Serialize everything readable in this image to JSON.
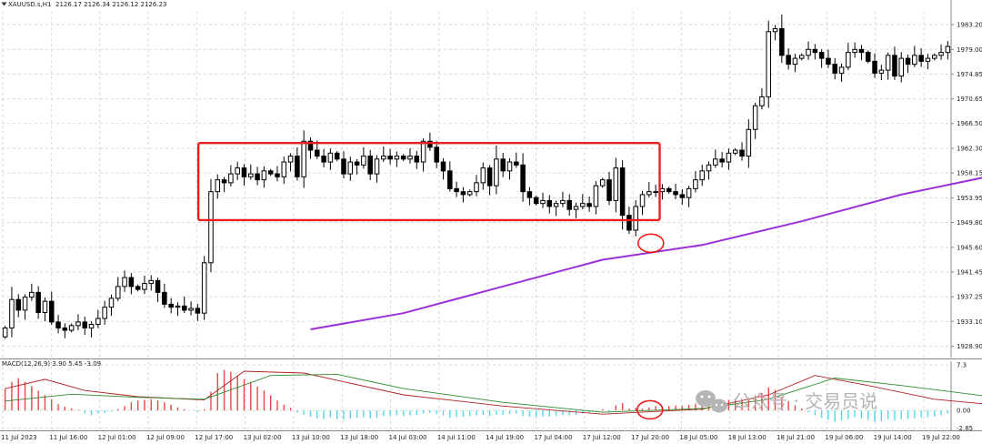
{
  "header": {
    "symbol_label": "XAUUSD.s,H1",
    "ohlc_label": "2126.17 2126.34 2126.12 2126.23",
    "macd_label": "MACD(12,26,9) 3.90 5.45 -3.09",
    "dropdown_icon": "triangle-down-icon"
  },
  "watermark": {
    "icon": "wechat-icon",
    "text": "公众号 · 交易员说"
  },
  "colors": {
    "background": "#ffffff",
    "grid": "#d9d9d9",
    "candle": "#000000",
    "ma": "#9b30d9",
    "highlight": "#ee1c1c",
    "macd_pos": "#ee4444",
    "macd_neg": "#55d6e6",
    "macd_fast": "#b22222",
    "macd_slow": "#2e8b2e"
  },
  "chart_data": [
    {
      "type": "candlestick",
      "title": "XAUUSD.s,H1",
      "y_axis_ticks": [
        "1983.20",
        "1979.00",
        "1974.85",
        "1970.65",
        "1966.50",
        "1962.30",
        "1958.15",
        "1953.95",
        "1949.80",
        "1945.60",
        "1941.45",
        "1937.25",
        "1933.10",
        "1928.90"
      ],
      "x_axis_ticks": [
        "11 Jul 2023",
        "11 Jul 16:00",
        "12 Jul 01:00",
        "12 Jul 09:00",
        "12 Jul 17:00",
        "13 Jul 02:00",
        "13 Jul 10:00",
        "13 Jul 18:00",
        "14 Jul 03:00",
        "14 Jul 11:00",
        "14 Jul 19:00",
        "17 Jul 04:00",
        "17 Jul 12:00",
        "17 Jul 20:00",
        "18 Jul 05:00",
        "18 Jul 13:00",
        "18 Jul 21:00",
        "19 Jul 06:00",
        "19 Jul 14:00",
        "19 Jul 22:00"
      ],
      "ylim": [
        1927.0,
        1985.5
      ],
      "grid": true,
      "closes": [
        1932.0,
        1936.8,
        1935.0,
        1937.2,
        1938.0,
        1934.6,
        1936.5,
        1933.0,
        1932.0,
        1931.6,
        1932.4,
        1933.0,
        1932.0,
        1932.6,
        1933.6,
        1935.5,
        1937.0,
        1939.0,
        1940.5,
        1939.0,
        1938.5,
        1939.5,
        1940.0,
        1938.0,
        1936.0,
        1935.5,
        1935.7,
        1935.0,
        1935.3,
        1934.5,
        1943.0,
        1955.0,
        1957.0,
        1956.5,
        1958.0,
        1959.0,
        1957.5,
        1958.0,
        1957.0,
        1958.5,
        1958.0,
        1957.5,
        1960.0,
        1961.0,
        1957.5,
        1963.5,
        1962.0,
        1961.0,
        1960.0,
        1961.5,
        1960.5,
        1958.0,
        1960.0,
        1959.5,
        1961.0,
        1958.0,
        1960.5,
        1961.0,
        1960.5,
        1961.0,
        1960.5,
        1961.0,
        1960.0,
        1963.5,
        1962.5,
        1960.0,
        1958.5,
        1955.5,
        1955.0,
        1954.5,
        1955.0,
        1956.5,
        1959.0,
        1956.0,
        1960.5,
        1958.5,
        1960.0,
        1959.5,
        1955.0,
        1954.0,
        1953.0,
        1953.5,
        1952.5,
        1953.0,
        1953.5,
        1952.0,
        1952.5,
        1953.0,
        1952.5,
        1956.0,
        1957.0,
        1953.5,
        1959.0,
        1951.0,
        1948.5,
        1952.5,
        1954.5,
        1955.0,
        1955.0,
        1955.5,
        1955.0,
        1954.5,
        1954.0,
        1955.5,
        1957.0,
        1958.5,
        1959.5,
        1960.5,
        1960.0,
        1961.5,
        1962.0,
        1961.0,
        1965.5,
        1969.5,
        1971.0,
        1982.0,
        1982.5,
        1978.0,
        1976.5,
        1977.5,
        1978.0,
        1979.0,
        1978.5,
        1977.5,
        1976.5,
        1975.0,
        1976.0,
        1978.5,
        1979.0,
        1978.5,
        1977.0,
        1975.0,
        1975.5,
        1978.0,
        1974.5,
        1977.5,
        1976.5,
        1978.0,
        1977.0,
        1977.5,
        1978.0,
        1978.5,
        1979.5
      ],
      "ma_line": [
        [
          0,
          1920.0
        ],
        [
          45,
          1931.5
        ],
        [
          60,
          1934.5
        ],
        [
          75,
          1939.0
        ],
        [
          90,
          1943.5
        ],
        [
          105,
          1946.0
        ],
        [
          120,
          1950.0
        ],
        [
          135,
          1954.5
        ],
        [
          150,
          1958.0
        ],
        [
          165,
          1961.0
        ],
        [
          175,
          1962.0
        ],
        [
          185,
          1963.0
        ]
      ],
      "ma_window": [
        46,
        185
      ],
      "highlight_range": {
        "y_top": 1963.2,
        "y_bottom": 1950.2
      },
      "highlight_circle": {
        "price": 1946.3
      }
    },
    {
      "type": "bar",
      "title": "MACD(12,26,9) 3.90 5.45 -3.09",
      "y_axis_ticks": [
        "7.3",
        "0.00",
        "-2.85"
      ],
      "ylim": [
        -3.2,
        7.9
      ],
      "grid": true,
      "histogram": [
        3.5,
        4.6,
        5.2,
        4.6,
        3.9,
        3.2,
        2.5,
        1.8,
        1.0,
        0.6,
        0.3,
        0.1,
        -0.5,
        -0.8,
        -0.5,
        -0.4,
        -0.2,
        0.2,
        0.7,
        1.3,
        1.6,
        1.7,
        1.8,
        1.6,
        1.3,
        0.9,
        0.5,
        0.2,
        0.0,
        -0.2,
        0.2,
        3.0,
        6.0,
        6.5,
        6.2,
        5.5,
        5.0,
        4.6,
        3.8,
        3.2,
        2.4,
        1.6,
        0.9,
        0.4,
        -0.4,
        -0.7,
        -1.0,
        -1.3,
        -1.4,
        -1.1,
        -1.4,
        -1.5,
        -1.3,
        -1.2,
        -1.1,
        -1.3,
        -1.2,
        -0.9,
        -0.9,
        -0.8,
        -0.9,
        -0.8,
        -0.7,
        -0.5,
        -0.4,
        -0.6,
        -0.8,
        -1.2,
        -1.1,
        -1.0,
        -0.9,
        -0.8,
        -0.7,
        -0.9,
        -0.7,
        -0.7,
        -0.6,
        -0.5,
        -0.9,
        -1.0,
        -1.1,
        -1.0,
        -1.0,
        -0.9,
        -0.8,
        -0.8,
        -0.7,
        -0.5,
        -0.4,
        -0.2,
        0.2,
        -0.3,
        0.8,
        1.2,
        0.3,
        0.4,
        0.3,
        0.5,
        0.7,
        0.6,
        0.7,
        0.8,
        0.7,
        0.9,
        1.1,
        1.3,
        1.5,
        1.7,
        1.6,
        1.7,
        1.8,
        1.6,
        2.0,
        2.4,
        2.8,
        3.7,
        3.3,
        2.2,
        1.5,
        0.8,
        0.3,
        -0.3,
        -0.8,
        -1.2,
        -1.5,
        -1.8,
        -1.6,
        -1.4,
        -1.1,
        -1.3,
        -1.5,
        -1.8,
        -1.7,
        -1.4,
        -1.6,
        -1.4,
        -1.4,
        -1.3,
        -1.2,
        -1.1,
        -1.0,
        -0.8,
        -0.5
      ],
      "fast_line": [
        [
          0,
          3.5
        ],
        [
          6,
          5.0
        ],
        [
          12,
          3.2
        ],
        [
          20,
          2.2
        ],
        [
          30,
          1.7
        ],
        [
          36,
          6.3
        ],
        [
          45,
          6.0
        ],
        [
          60,
          2.5
        ],
        [
          75,
          0.7
        ],
        [
          90,
          -0.6
        ],
        [
          105,
          0.2
        ],
        [
          115,
          2.5
        ],
        [
          122,
          5.6
        ],
        [
          130,
          4.0
        ],
        [
          140,
          1.8
        ],
        [
          150,
          0.8
        ],
        [
          160,
          0.0
        ],
        [
          185,
          -0.2
        ]
      ],
      "slow_line": [
        [
          0,
          1.5
        ],
        [
          10,
          2.6
        ],
        [
          20,
          2.1
        ],
        [
          30,
          1.8
        ],
        [
          40,
          5.6
        ],
        [
          50,
          5.8
        ],
        [
          60,
          3.5
        ],
        [
          75,
          1.3
        ],
        [
          90,
          -0.3
        ],
        [
          105,
          0.3
        ],
        [
          115,
          1.8
        ],
        [
          125,
          5.2
        ],
        [
          135,
          4.0
        ],
        [
          150,
          2.0
        ],
        [
          165,
          0.8
        ],
        [
          185,
          0.5
        ]
      ],
      "highlight_circle": {
        "value": 0.1
      }
    }
  ]
}
